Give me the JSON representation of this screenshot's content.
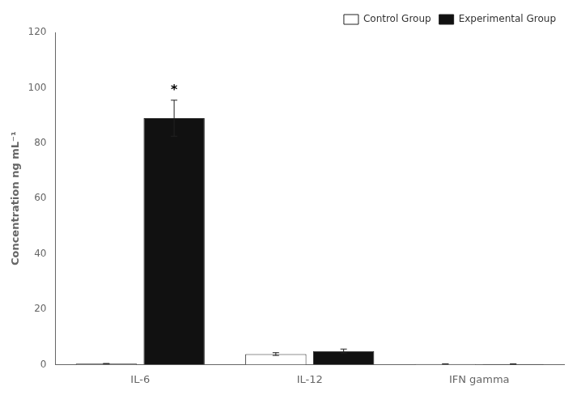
{
  "chart_data": {
    "type": "bar",
    "ylabel": "Concentration ng mL⁻¹",
    "categories": [
      "IL-6",
      "IL-12",
      "IFN gamma"
    ],
    "series": [
      {
        "name": "Control Group",
        "color": "#ffffff",
        "values": [
          0.3,
          3.8,
          0.2
        ],
        "errors": [
          0.1,
          0.5,
          0.05
        ]
      },
      {
        "name": "Experimental Group",
        "color": "#111111",
        "values": [
          89.0,
          4.9,
          0.2
        ],
        "errors": [
          6.5,
          0.7,
          0.05
        ]
      }
    ],
    "annotations": [
      {
        "text": "*",
        "category": "IL-6",
        "series": "Experimental Group"
      }
    ],
    "ylim": [
      0,
      120
    ],
    "yticks": [
      0,
      20,
      40,
      60,
      80,
      100,
      120
    ],
    "grid": false,
    "legend": "upper right"
  }
}
